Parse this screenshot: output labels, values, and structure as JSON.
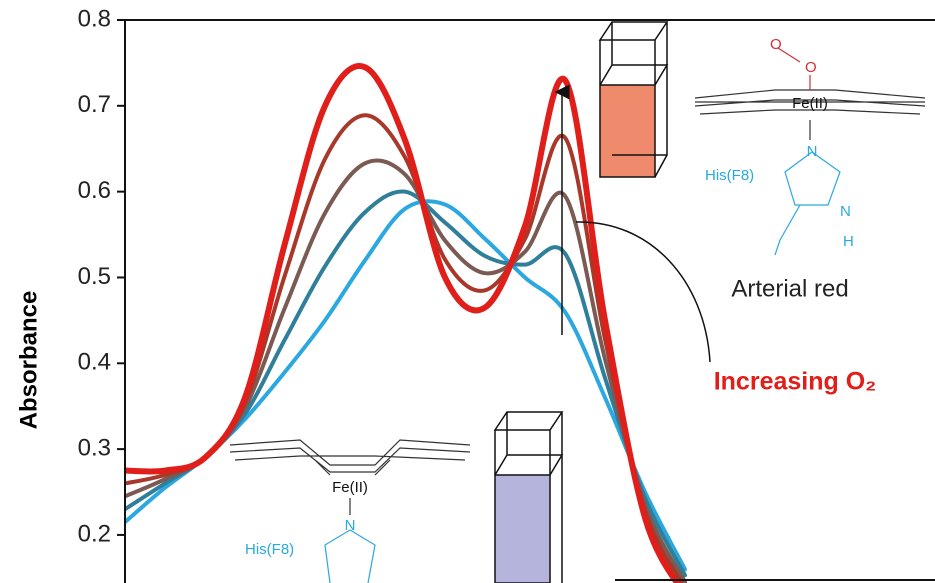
{
  "chart_data": {
    "type": "line",
    "y_label": "Absorbance",
    "categories": [
      null,
      null,
      null,
      null,
      null,
      null,
      null,
      null,
      null,
      null,
      null,
      null,
      null,
      null,
      null
    ],
    "ylim": [
      0.144,
      0.8
    ],
    "yticks": [
      0.2,
      0.3,
      0.4,
      0.5,
      0.6,
      0.7,
      0.8
    ],
    "series": [
      {
        "color": "#2aa8df",
        "values": [
          0.215,
          0.255,
          0.29,
          0.335,
          0.39,
          0.45,
          0.52,
          0.58,
          0.585,
          0.545,
          0.5,
          0.46,
          0.36,
          0.25,
          0.16
        ]
      },
      {
        "color": "#2f7f9a",
        "values": [
          0.23,
          0.26,
          0.29,
          0.341,
          0.428,
          0.513,
          0.576,
          0.6,
          0.564,
          0.525,
          0.515,
          0.528,
          0.383,
          0.243,
          0.153
        ]
      },
      {
        "color": "#7a5a52",
        "values": [
          0.245,
          0.265,
          0.29,
          0.348,
          0.465,
          0.575,
          0.633,
          0.62,
          0.543,
          0.505,
          0.53,
          0.595,
          0.405,
          0.235,
          0.145
        ]
      },
      {
        "color": "#a8392a",
        "values": [
          0.26,
          0.27,
          0.29,
          0.354,
          0.503,
          0.638,
          0.689,
          0.64,
          0.521,
          0.485,
          0.545,
          0.663,
          0.428,
          0.228,
          0.138
        ]
      },
      {
        "color": "#e01e1a",
        "values": [
          0.275,
          0.275,
          0.29,
          0.36,
          0.54,
          0.7,
          0.745,
          0.66,
          0.5,
          0.465,
          0.56,
          0.73,
          0.45,
          0.22,
          0.13
        ]
      }
    ],
    "annotations": {
      "arterial": "Arterial red",
      "increasing": "Increasing O₂",
      "fe_top": "Fe(II)",
      "fe_bottom": "Fe(II)",
      "his_top": "His(F8)",
      "his_bottom": "His(F8)",
      "o1": "O",
      "o2": "O",
      "n_top1": "N",
      "n_top2": "N",
      "h_top": "H",
      "n_bottom": "N"
    }
  }
}
